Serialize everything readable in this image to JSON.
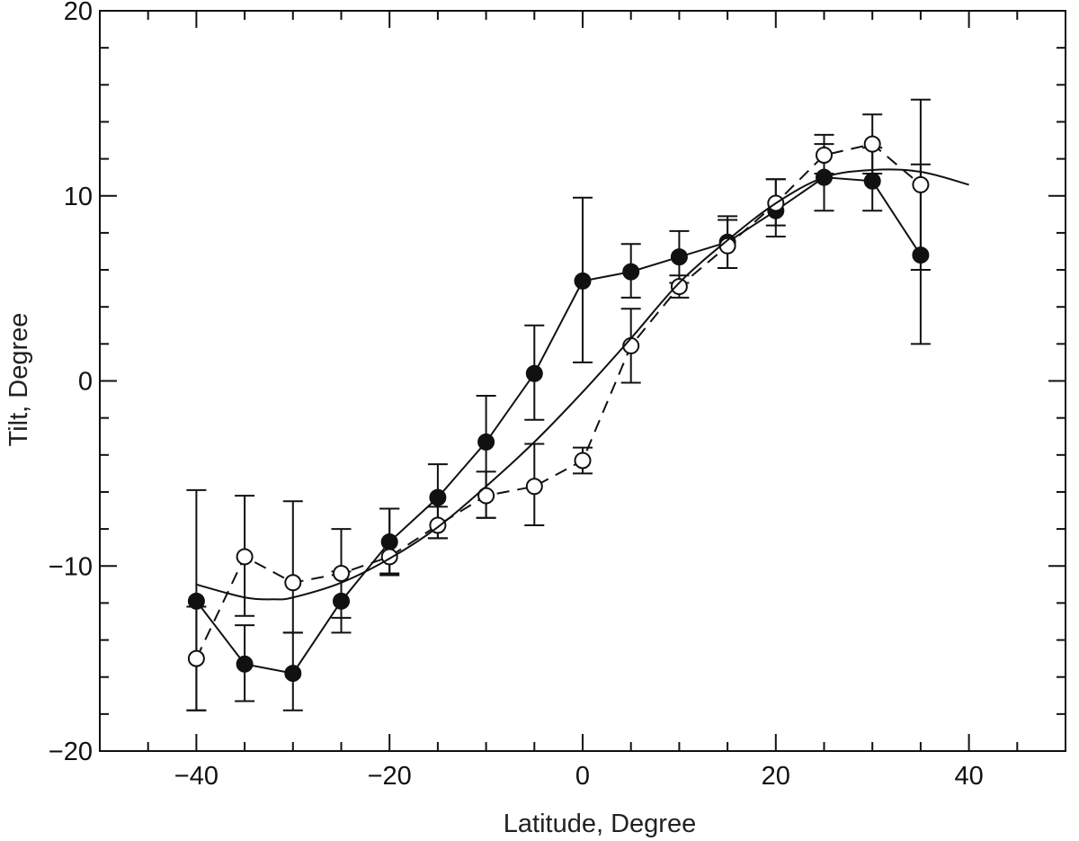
{
  "chart_data": {
    "type": "scatter",
    "title": "",
    "xlabel": "Latitude, Degree",
    "ylabel": "Tilt, Degree",
    "xlim": [
      -50,
      50
    ],
    "ylim": [
      -20,
      20
    ],
    "xticks": [
      -40,
      -20,
      0,
      20,
      40
    ],
    "xtick_labels": [
      "−40",
      "−20",
      "0",
      "20",
      "40"
    ],
    "yticks": [
      -20,
      -10,
      0,
      10,
      20
    ],
    "ytick_labels": [
      "−20",
      "−10",
      "0",
      "10",
      "20"
    ],
    "x_minor_step": 5,
    "y_minor_step": 2,
    "grid": false,
    "series": [
      {
        "name": "filled circles",
        "marker": "filled-circle",
        "line": "solid",
        "color": "#111111",
        "x": [
          -40,
          -35,
          -30,
          -25,
          -20,
          -15,
          -10,
          -5,
          0,
          5,
          10,
          15,
          20,
          25,
          30,
          35
        ],
        "y": [
          -11.9,
          -15.3,
          -15.8,
          -11.9,
          -8.7,
          -6.3,
          -3.3,
          0.4,
          5.4,
          5.9,
          6.7,
          7.5,
          9.2,
          11.0,
          10.8,
          6.8
        ],
        "err_low": [
          -17.8,
          -17.3,
          -17.8,
          -13.6,
          -10.5,
          -8.5,
          -7.4,
          -2.1,
          1.0,
          4.5,
          5.3,
          6.1,
          8.4,
          9.2,
          9.2,
          2.0
        ],
        "err_high": [
          -5.9,
          -13.2,
          -13.6,
          -10.3,
          -6.9,
          -4.5,
          -0.8,
          3.0,
          9.9,
          7.4,
          8.1,
          8.9,
          10.9,
          12.8,
          12.6,
          11.7
        ]
      },
      {
        "name": "open circles",
        "marker": "open-circle",
        "line": "dashed",
        "color": "#111111",
        "x": [
          -40,
          -35,
          -30,
          -25,
          -20,
          -15,
          -10,
          -5,
          0,
          5,
          10,
          15,
          20,
          25,
          30,
          35
        ],
        "y": [
          -15.0,
          -9.5,
          -10.9,
          -10.4,
          -9.5,
          -7.8,
          -6.2,
          -5.7,
          -4.3,
          1.9,
          5.1,
          7.3,
          9.6,
          12.2,
          12.8,
          10.6
        ],
        "err_low": [
          -17.8,
          -12.7,
          -13.6,
          -12.8,
          -10.4,
          -8.5,
          -7.4,
          -7.8,
          -5.0,
          -0.1,
          4.5,
          6.1,
          7.8,
          11.2,
          11.2,
          6.0
        ],
        "err_high": [
          -12.2,
          -6.2,
          -6.5,
          -8.0,
          -6.9,
          -6.8,
          -4.9,
          -3.4,
          -3.6,
          3.9,
          5.7,
          8.7,
          10.9,
          13.3,
          14.4,
          15.2
        ]
      },
      {
        "name": "fitted curve",
        "marker": "none",
        "line": "solid",
        "color": "#111111",
        "x": [
          -40,
          -35,
          -32,
          -30,
          -25,
          -20,
          -15,
          -10,
          -5,
          0,
          5,
          10,
          15,
          20,
          25,
          30,
          35,
          40
        ],
        "y": [
          -11.0,
          -11.7,
          -11.8,
          -11.7,
          -10.9,
          -9.6,
          -7.9,
          -5.7,
          -3.3,
          -0.6,
          2.3,
          5.3,
          7.6,
          9.6,
          11.0,
          11.4,
          11.3,
          10.6
        ]
      }
    ]
  }
}
